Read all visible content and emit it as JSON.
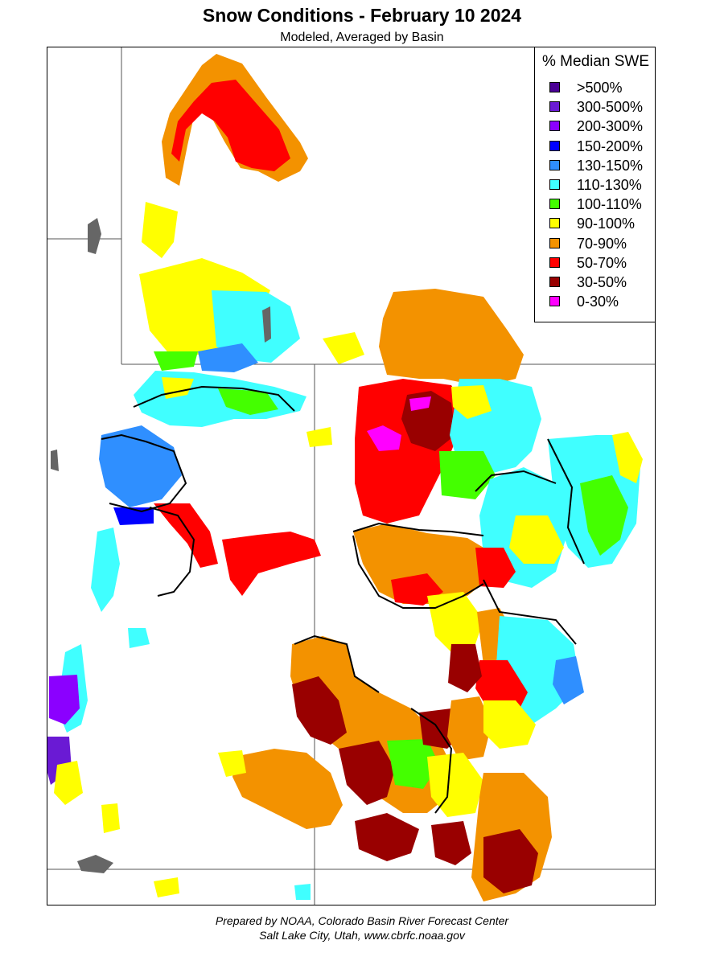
{
  "title": "Snow Conditions - February 10 2024",
  "subtitle": "Modeled, Averaged by Basin",
  "legend": {
    "title": "% Median SWE",
    "items": [
      {
        "label": ">500%",
        "color": "#4b0096"
      },
      {
        "label": "300-500%",
        "color": "#6a1ad4"
      },
      {
        "label": "200-300%",
        "color": "#8b00ff"
      },
      {
        "label": "150-200%",
        "color": "#0000ff"
      },
      {
        "label": "130-150%",
        "color": "#2f8fff"
      },
      {
        "label": "110-130%",
        "color": "#40ffff"
      },
      {
        "label": "100-110%",
        "color": "#44ff00"
      },
      {
        "label": "90-100%",
        "color": "#ffff00"
      },
      {
        "label": "70-90%",
        "color": "#f39200"
      },
      {
        "label": "50-70%",
        "color": "#ff0000"
      },
      {
        "label": "30-50%",
        "color": "#990000"
      },
      {
        "label": "0-30%",
        "color": "#ff00ff"
      }
    ]
  },
  "footer": {
    "line1": "Prepared by NOAA, Colorado Basin River Forecast Center",
    "line2": "Salt Lake City, Utah, www.cbrfc.noaa.gov"
  }
}
